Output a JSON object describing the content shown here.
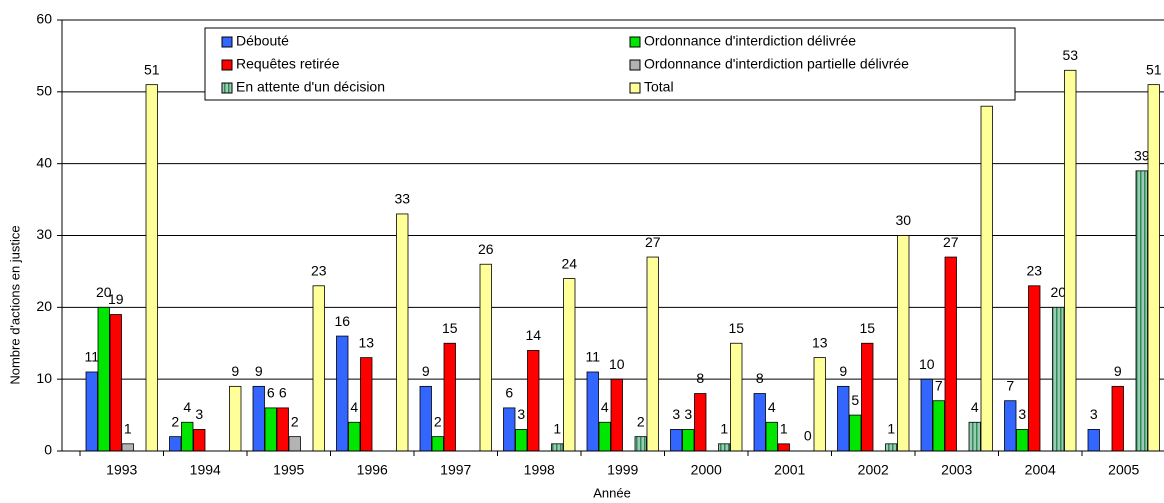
{
  "chart_data": {
    "type": "bar",
    "x_label": "Année",
    "y_label": "Nombre d'actions en justice",
    "categories": [
      "1993",
      "1994",
      "1995",
      "1996",
      "1997",
      "1998",
      "1999",
      "2000",
      "2001",
      "2002",
      "2003",
      "2004",
      "2005"
    ],
    "series": [
      {
        "name": "Débouté",
        "color": "#3366ff",
        "values": [
          11,
          2,
          9,
          16,
          9,
          6,
          11,
          3,
          8,
          9,
          10,
          7,
          3
        ]
      },
      {
        "name": "Ordonnance d'interdiction délivrée",
        "color": "#00e600",
        "values": [
          20,
          4,
          6,
          4,
          2,
          3,
          4,
          3,
          4,
          5,
          7,
          3,
          null
        ]
      },
      {
        "name": "Requêtes retirée",
        "color": "#ff0000",
        "values": [
          19,
          3,
          6,
          13,
          15,
          14,
          10,
          8,
          1,
          15,
          27,
          23,
          9
        ]
      },
      {
        "name": "Ordonnance d'interdiction partielle délivrée",
        "color": "#b3b3b3",
        "values": [
          1,
          null,
          2,
          null,
          null,
          null,
          null,
          null,
          null,
          null,
          null,
          null,
          null
        ]
      },
      {
        "name": "En attente d'un décision",
        "color": "#99ccb3",
        "values": [
          null,
          null,
          null,
          null,
          null,
          1,
          2,
          1,
          0,
          1,
          4,
          20,
          39
        ]
      },
      {
        "name": "Total",
        "color": "#ffff99",
        "values": [
          51,
          9,
          23,
          33,
          26,
          24,
          27,
          15,
          13,
          30,
          48,
          53,
          51
        ]
      }
    ],
    "ylim": [
      0,
      60
    ],
    "yticks": [
      0,
      10,
      20,
      30,
      40,
      50,
      60
    ],
    "legend": "top"
  }
}
